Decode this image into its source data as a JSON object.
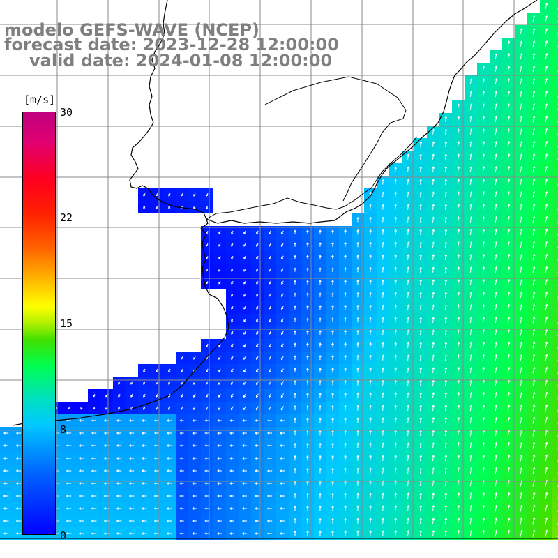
{
  "title": {
    "line1": "modelo GEFS-WAVE (NCEP)",
    "line2": "forecast date: 2023-12-28 12:00:00",
    "line3": "valid date: 2024-01-08 12:00:00"
  },
  "colorbar": {
    "unit": "[m/s]",
    "ticks": [
      "30",
      "22",
      "15",
      "8",
      "0"
    ],
    "min": 0,
    "max": 30
  },
  "colors": {
    "title_text": "#7f7f7f",
    "grid": "#808080",
    "coast": "#000000",
    "land": "#ffffff"
  }
}
